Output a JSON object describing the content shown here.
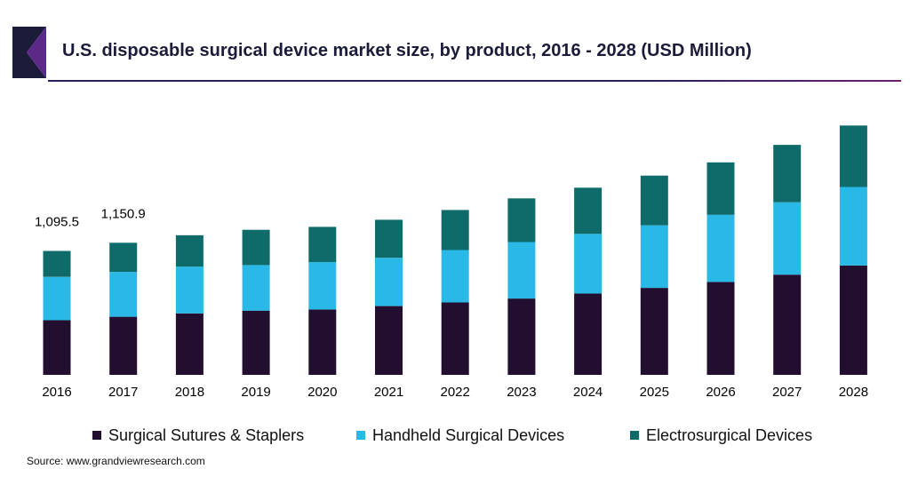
{
  "header": {
    "title": "U.S. disposable surgical device market size, by product, 2016 - 2028 (USD Million)"
  },
  "source": "Source: www.grandviewresearch.com",
  "colors": {
    "logo_dark": "#1b1b3a",
    "logo_accent": "#5b2a86",
    "rule": "#2a1f5c"
  },
  "chart_data": {
    "type": "bar",
    "stacked": true,
    "title": "U.S. disposable surgical device market size, by product, 2016 - 2028 (USD Million)",
    "xlabel": "",
    "ylabel": "",
    "categories": [
      "2016",
      "2017",
      "2018",
      "2019",
      "2020",
      "2021",
      "2022",
      "2023",
      "2024",
      "2025",
      "2026",
      "2027",
      "2028"
    ],
    "series": [
      {
        "name": "Surgical Sutures & Staplers",
        "color": "#220e2e",
        "values": [
          240,
          255,
          270,
          282,
          287,
          302,
          318,
          335,
          357,
          382,
          408,
          440,
          480
        ]
      },
      {
        "name": "Handheld Surgical Devices",
        "color": "#2ab9e6",
        "values": [
          190,
          197,
          205,
          200,
          208,
          212,
          230,
          248,
          262,
          275,
          295,
          318,
          345
        ]
      },
      {
        "name": "Electrosurgical Devices",
        "color": "#0f6b6a",
        "values": [
          114,
          128,
          138,
          155,
          155,
          167,
          176,
          192,
          203,
          218,
          230,
          252,
          270
        ]
      }
    ],
    "data_labels": [
      {
        "category": "2016",
        "text": "1,095.5"
      },
      {
        "category": "2017",
        "text": "1,150.9"
      }
    ],
    "ylim": [
      0,
      1100
    ],
    "grid": false,
    "y_axis_visible": false,
    "legend_position": "bottom"
  }
}
